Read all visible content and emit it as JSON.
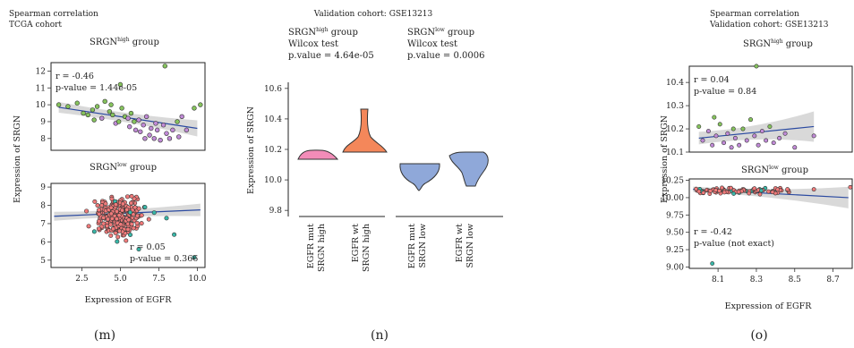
{
  "colors": {
    "pink": "#f28cb8",
    "orange": "#f4875a",
    "blue": "#8fa8d9",
    "green": "#86c35d",
    "purple": "#c08ad6",
    "red": "#f07a7a",
    "teal": "#39b7a8",
    "line": "#2b4aa1",
    "band": "#cccccc"
  },
  "panels": {
    "m": {
      "caption": "(m)",
      "title1": "Spearman correlation",
      "title2": "TCGA cohort",
      "top": {
        "group_text": "SRGN",
        "group_sup": "high",
        "group_suffix": " group",
        "r": "r = -0.46",
        "p": "p-value = 1.44e-05"
      },
      "bottom": {
        "group_text": "SRGN",
        "group_sup": "low",
        "group_suffix": " group",
        "r": "r = 0.05",
        "p": "p-value = 0.366"
      },
      "ylabel": "Expression of SRGN",
      "xlabel": "Expression of EGFR"
    },
    "n": {
      "caption": "(n)",
      "title": "Validation cohort: GSE13213",
      "ann_high": {
        "group_text": "SRGN",
        "group_sup": "high",
        "group_suffix": " group",
        "test": "Wilcox test",
        "p": "p.value = 4.64e-05"
      },
      "ann_low": {
        "group_text": "SRGN",
        "group_sup": "low",
        "group_suffix": " group",
        "test": "Wilcox test",
        "p": "p.value = 0.0006"
      },
      "ylabel": "Expression of SRGN"
    },
    "o": {
      "caption": "(o)",
      "title1": "Spearman correlation",
      "title2": "Validation cohort: GSE13213",
      "top": {
        "group_text": "SRGN",
        "group_sup": "high",
        "group_suffix": " group",
        "r": "r = 0.04",
        "p": "p-value = 0.84"
      },
      "bottom": {
        "group_text": "SRGN",
        "group_sup": "low",
        "group_suffix": " group",
        "r": "r = -0.42",
        "p": "p-value (not exact)"
      },
      "ylabel": "Expression of SRGN",
      "xlabel": "Expression of EGFR"
    }
  },
  "chart_data": [
    {
      "type": "scatter",
      "panel": "m-top",
      "xlim": [
        0.5,
        10.5
      ],
      "ylim": [
        7.3,
        12.5
      ],
      "yticks": [
        8,
        9,
        10,
        11,
        12
      ],
      "points": [
        [
          1,
          10.0
        ],
        [
          1.6,
          9.9
        ],
        [
          2.2,
          10.1
        ],
        [
          2.6,
          9.5
        ],
        [
          2.9,
          9.4
        ],
        [
          3.2,
          9.7
        ],
        [
          3.5,
          9.9
        ],
        [
          3.8,
          9.2
        ],
        [
          4.0,
          10.2
        ],
        [
          4.3,
          9.6
        ],
        [
          4.5,
          9.4
        ],
        [
          4.7,
          8.9
        ],
        [
          4.9,
          9.0
        ],
        [
          5.0,
          11.2
        ],
        [
          5.1,
          9.8
        ],
        [
          5.3,
          9.3
        ],
        [
          5.5,
          9.2
        ],
        [
          5.7,
          9.5
        ],
        [
          5.9,
          9.0
        ],
        [
          6.0,
          8.5
        ],
        [
          6.2,
          9.1
        ],
        [
          6.3,
          8.4
        ],
        [
          6.5,
          8.8
        ],
        [
          6.7,
          9.3
        ],
        [
          6.9,
          8.2
        ],
        [
          7.0,
          8.6
        ],
        [
          7.2,
          8.0
        ],
        [
          7.4,
          8.5
        ],
        [
          7.6,
          7.9
        ],
        [
          7.8,
          8.8
        ],
        [
          8.0,
          8.3
        ],
        [
          8.2,
          8.0
        ],
        [
          8.4,
          8.5
        ],
        [
          8.7,
          9.0
        ],
        [
          9.0,
          9.3
        ],
        [
          9.3,
          8.5
        ],
        [
          9.8,
          9.8
        ],
        [
          10.2,
          10.0
        ],
        [
          7.9,
          12.3
        ],
        [
          8.8,
          8.1
        ],
        [
          5.6,
          8.7
        ],
        [
          4.4,
          10.0
        ],
        [
          3.3,
          9.1
        ],
        [
          6.6,
          8.0
        ],
        [
          7.3,
          8.9
        ]
      ],
      "trend": [
        [
          1,
          9.85
        ],
        [
          10,
          8.6
        ]
      ]
    },
    {
      "type": "scatter",
      "panel": "m-bottom",
      "xlim": [
        0.5,
        10.5
      ],
      "ylim": [
        4.6,
        9.2
      ],
      "xticks": [
        2.5,
        5.0,
        7.5,
        10.0
      ],
      "yticks": [
        5,
        6,
        7,
        8,
        9
      ],
      "trend": [
        [
          0.7,
          7.4
        ],
        [
          10.2,
          7.75
        ]
      ]
    },
    {
      "type": "violin",
      "panel": "n",
      "ylim": [
        9.76,
        10.64
      ],
      "yticks": [
        9.8,
        10.0,
        10.2,
        10.4,
        10.6
      ],
      "categories": [
        "EGFR mut SRGN high",
        "EGFR wt SRGN high",
        "EGFR mut SRGN low",
        "EGFR wt SRGN low"
      ],
      "ranges": [
        [
          10.13,
          10.2
        ],
        [
          10.18,
          10.47
        ],
        [
          9.94,
          10.12
        ],
        [
          9.97,
          10.19
        ]
      ]
    },
    {
      "type": "scatter",
      "panel": "o-top",
      "xlim": [
        7.95,
        8.8
      ],
      "ylim": [
        10.1,
        10.47
      ],
      "yticks": [
        10.1,
        10.2,
        10.3,
        10.4
      ],
      "points": [
        [
          8.0,
          10.21
        ],
        [
          8.02,
          10.15
        ],
        [
          8.05,
          10.19
        ],
        [
          8.07,
          10.13
        ],
        [
          8.09,
          10.17
        ],
        [
          8.11,
          10.22
        ],
        [
          8.13,
          10.14
        ],
        [
          8.15,
          10.18
        ],
        [
          8.17,
          10.12
        ],
        [
          8.19,
          10.16
        ],
        [
          8.21,
          10.13
        ],
        [
          8.23,
          10.2
        ],
        [
          8.25,
          10.15
        ],
        [
          8.27,
          10.24
        ],
        [
          8.29,
          10.17
        ],
        [
          8.31,
          10.13
        ],
        [
          8.33,
          10.19
        ],
        [
          8.35,
          10.15
        ],
        [
          8.37,
          10.21
        ],
        [
          8.39,
          10.14
        ],
        [
          8.42,
          10.16
        ],
        [
          8.45,
          10.18
        ],
        [
          8.5,
          10.12
        ],
        [
          8.6,
          10.17
        ],
        [
          8.3,
          10.47
        ],
        [
          8.08,
          10.25
        ],
        [
          8.18,
          10.2
        ]
      ],
      "trend": [
        [
          8.0,
          10.16
        ],
        [
          8.6,
          10.21
        ]
      ]
    },
    {
      "type": "scatter",
      "panel": "o-bottom",
      "xlim": [
        7.95,
        8.8
      ],
      "ylim": [
        8.98,
        10.27
      ],
      "xticks": [
        8.1,
        8.3,
        8.5,
        8.7
      ],
      "yticks": [
        9.0,
        9.25,
        9.5,
        9.75,
        10.0,
        10.25
      ],
      "trend": [
        [
          7.97,
          10.12
        ],
        [
          8.78,
          10.0
        ]
      ]
    }
  ]
}
